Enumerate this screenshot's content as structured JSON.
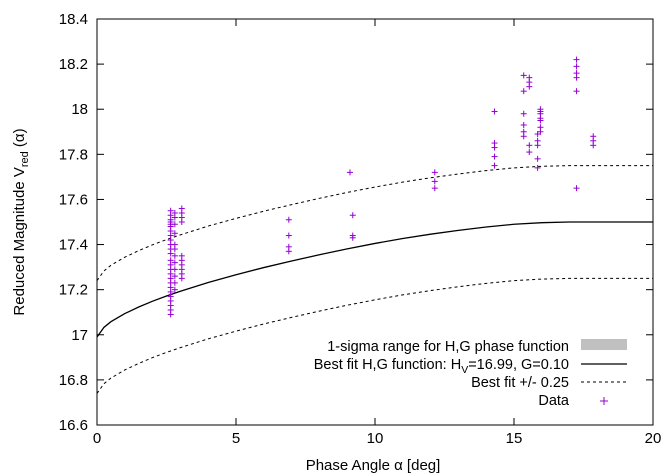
{
  "chart_data": {
    "type": "scatter",
    "xlabel": "Phase Angle α [deg]",
    "ylabel": "Reduced Magnitude V",
    "ylabel_sub": "red",
    "ylabel_suffix": " (α)",
    "xlim": [
      0,
      20
    ],
    "ylim": [
      16.6,
      18.4
    ],
    "x_ticks": [
      0,
      5,
      10,
      15,
      20
    ],
    "x_tick_labels": [
      "0",
      "5",
      "10",
      "15",
      "20"
    ],
    "y_ticks": [
      16.6,
      16.8,
      17.0,
      17.2,
      17.4,
      17.6,
      17.8,
      18.0,
      18.2,
      18.4
    ],
    "y_tick_labels": [
      "16.6",
      "16.8",
      "17",
      "17.2",
      "17.4",
      "17.6",
      "17.8",
      "18",
      "18.2",
      "18.4"
    ],
    "grid": false,
    "legend_position": "bottom-right",
    "model": {
      "H": 16.99,
      "G": 0.1
    },
    "series": [
      {
        "name": "1-sigma range for H,G phase function",
        "kind": "band",
        "color": "#c0c0c0",
        "x": [
          0,
          0.25,
          0.5,
          1,
          1.5,
          2,
          2.5,
          3,
          4,
          5,
          6,
          7,
          8,
          9,
          10,
          11,
          12,
          13,
          14,
          15,
          16,
          17,
          18,
          19,
          20
        ],
        "lower": [
          16.99,
          17.033,
          17.058,
          17.094,
          17.123,
          17.149,
          17.172,
          17.193,
          17.232,
          17.266,
          17.298,
          17.327,
          17.355,
          17.381,
          17.405,
          17.427,
          17.446,
          17.463,
          17.478,
          17.49,
          17.497,
          17.5,
          17.5,
          17.5,
          17.5
        ],
        "upper": [
          16.99,
          17.033,
          17.058,
          17.094,
          17.123,
          17.149,
          17.172,
          17.193,
          17.232,
          17.266,
          17.298,
          17.327,
          17.355,
          17.381,
          17.405,
          17.427,
          17.446,
          17.463,
          17.478,
          17.49,
          17.497,
          17.5,
          17.5,
          17.5,
          17.5
        ]
      },
      {
        "name": "Best fit H,G function: H",
        "name_sub": "V",
        "name_suffix": "=16.99, G=0.10",
        "kind": "line",
        "color": "#000000",
        "x": [
          0,
          0.25,
          0.5,
          1,
          1.5,
          2,
          2.5,
          3,
          4,
          5,
          6,
          7,
          8,
          9,
          10,
          11,
          12,
          13,
          14,
          15,
          16,
          17,
          18,
          19,
          20
        ],
        "y": [
          16.99,
          17.033,
          17.058,
          17.094,
          17.123,
          17.149,
          17.172,
          17.193,
          17.232,
          17.266,
          17.298,
          17.327,
          17.355,
          17.381,
          17.405,
          17.427,
          17.446,
          17.463,
          17.478,
          17.49,
          17.497,
          17.5,
          17.5,
          17.5,
          17.5
        ]
      },
      {
        "name": "Best fit +/- 0.25",
        "kind": "dashed",
        "color": "#000000",
        "offset": 0.25
      },
      {
        "name": "Data",
        "kind": "points",
        "color": "#9400d3",
        "marker": "+",
        "x": [
          2.65,
          2.65,
          2.65,
          2.65,
          2.65,
          2.65,
          2.65,
          2.65,
          2.65,
          2.65,
          2.65,
          2.65,
          2.65,
          2.65,
          2.65,
          2.65,
          2.65,
          2.65,
          2.65,
          2.65,
          2.65,
          2.65,
          2.65,
          2.65,
          2.65,
          2.8,
          2.8,
          2.8,
          2.8,
          2.8,
          2.8,
          2.8,
          2.8,
          2.8,
          2.8,
          2.8,
          2.8,
          3.05,
          3.05,
          3.05,
          3.05,
          3.05,
          3.05,
          3.05,
          3.05,
          3.05,
          3.05,
          6.9,
          6.9,
          6.9,
          6.9,
          9.1,
          9.2,
          9.2,
          9.2,
          12.15,
          12.15,
          12.15,
          14.3,
          14.3,
          14.3,
          14.3,
          14.3,
          15.35,
          15.35,
          15.35,
          15.35,
          15.35,
          15.35,
          15.55,
          15.55,
          15.55,
          15.55,
          15.55,
          15.85,
          15.85,
          15.85,
          15.85,
          15.85,
          15.95,
          15.95,
          15.95,
          15.95,
          15.95,
          15.95,
          15.95,
          17.25,
          17.25,
          17.25,
          17.25,
          17.25,
          17.25,
          17.85,
          17.85,
          17.85
        ],
        "y": [
          17.09,
          17.11,
          17.13,
          17.15,
          17.17,
          17.19,
          17.21,
          17.23,
          17.25,
          17.27,
          17.29,
          17.31,
          17.33,
          17.36,
          17.38,
          17.4,
          17.42,
          17.44,
          17.46,
          17.48,
          17.49,
          17.5,
          17.51,
          17.53,
          17.55,
          17.2,
          17.23,
          17.26,
          17.29,
          17.32,
          17.35,
          17.38,
          17.4,
          17.45,
          17.49,
          17.52,
          17.54,
          17.25,
          17.27,
          17.29,
          17.31,
          17.33,
          17.35,
          17.5,
          17.52,
          17.54,
          17.56,
          17.37,
          17.39,
          17.44,
          17.51,
          17.72,
          17.43,
          17.44,
          17.53,
          17.65,
          17.68,
          17.72,
          17.75,
          17.79,
          17.83,
          17.85,
          17.99,
          17.88,
          17.9,
          17.93,
          17.98,
          18.08,
          18.15,
          17.81,
          17.84,
          18.1,
          18.12,
          18.14,
          17.74,
          17.78,
          17.84,
          17.86,
          17.89,
          17.9,
          17.92,
          17.95,
          17.96,
          17.98,
          17.99,
          18.0,
          18.08,
          18.14,
          18.16,
          18.19,
          18.22,
          17.65,
          17.84,
          17.86,
          17.88
        ]
      }
    ]
  }
}
